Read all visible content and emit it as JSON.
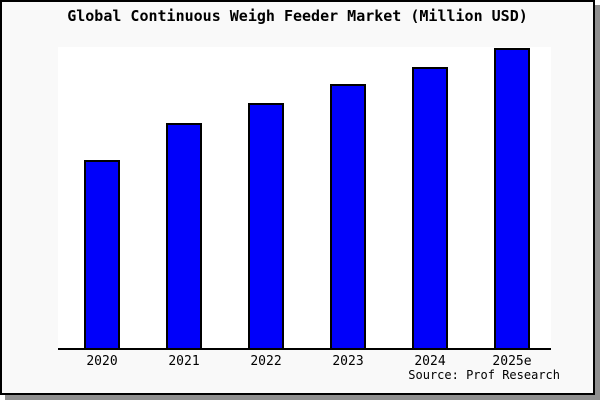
{
  "window": {
    "background": "#f9f9f9",
    "border_color": "#000000",
    "shadow_color": "#8f8f8f"
  },
  "title": "Global Continuous Weigh Feeder Market (Million USD)",
  "source_note": "Source: Prof Research",
  "chart_data": {
    "type": "bar",
    "title": "Global Continuous Weigh Feeder Market (Million USD)",
    "categories": [
      "2020",
      "2021",
      "2022",
      "2023",
      "2024",
      "2025e"
    ],
    "values": [
      62.7,
      75.0,
      81.7,
      88.0,
      93.7,
      100.0
    ],
    "values_note": "relative index estimated from bar heights (2025e = 100); no y-axis scale shown in chart",
    "xlabel": "",
    "ylabel": "",
    "ylim": [
      0,
      101
    ],
    "grid": false,
    "legend": "none",
    "y_axis_ticks": "none",
    "bar_color": "#0000fa",
    "bar_border_color": "#000000",
    "axis_line_color": "#000000",
    "plot_background": "#ffffff"
  }
}
